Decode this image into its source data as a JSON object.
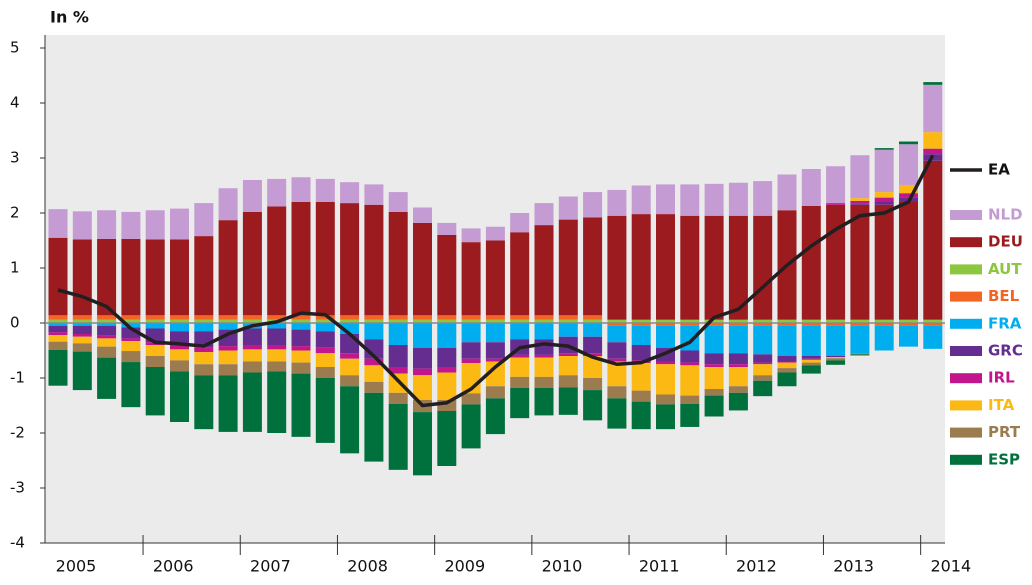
{
  "chart_data": {
    "type": "stacked_bar_line",
    "y_axis_label": "In %",
    "ylim": [
      -4,
      5
    ],
    "yticks": [
      -4,
      -3,
      -2,
      -1,
      0,
      1,
      2,
      3,
      4,
      5
    ],
    "x_labels": [
      "2005",
      "2006",
      "2007",
      "2008",
      "2009",
      "2010",
      "2011",
      "2012",
      "2013",
      "2014"
    ],
    "series": [
      {
        "name": "NLD",
        "color": "#c49bd2",
        "values": [
          0.52,
          0.51,
          0.52,
          0.49,
          0.53,
          0.56,
          0.6,
          0.58,
          0.58,
          0.5,
          0.45,
          0.42,
          0.38,
          0.37,
          0.36,
          0.28,
          0.22,
          0.25,
          0.25,
          0.35,
          0.4,
          0.42,
          0.46,
          0.47,
          0.52,
          0.54,
          0.57,
          0.58,
          0.6,
          0.63,
          0.65,
          0.67,
          0.67,
          0.78,
          0.77,
          0.74,
          0.86
        ]
      },
      {
        "name": "DEU",
        "color": "#9b1b1f",
        "values": [
          1.41,
          1.38,
          1.39,
          1.39,
          1.38,
          1.38,
          1.44,
          1.73,
          1.88,
          1.98,
          2.06,
          2.06,
          2.04,
          2.01,
          1.88,
          1.68,
          1.46,
          1.33,
          1.36,
          1.51,
          1.64,
          1.74,
          1.78,
          1.89,
          1.92,
          1.92,
          1.89,
          1.89,
          1.89,
          1.89,
          1.99,
          2.07,
          2.09,
          2.09,
          2.09,
          2.14,
          2.89
        ]
      },
      {
        "name": "AUT",
        "color": "#8dc63f",
        "values": [
          0.06,
          0.06,
          0.06,
          0.06,
          0.06,
          0.06,
          0.06,
          0.06,
          0.06,
          0.06,
          0.06,
          0.06,
          0.06,
          0.06,
          0.06,
          0.06,
          0.06,
          0.06,
          0.06,
          0.06,
          0.06,
          0.06,
          0.06,
          0.06,
          0.06,
          0.06,
          0.06,
          0.06,
          0.06,
          0.06,
          0.06,
          0.06,
          0.06,
          0.06,
          0.06,
          0.06,
          0.06
        ]
      },
      {
        "name": "BEL",
        "color": "#f26522",
        "values": [
          0.08,
          0.08,
          0.08,
          0.08,
          0.08,
          0.08,
          0.08,
          0.08,
          0.08,
          0.08,
          0.08,
          0.08,
          0.08,
          0.08,
          0.08,
          0.08,
          0.08,
          0.08,
          0.08,
          0.08,
          0.08,
          0.08,
          0.08,
          -0.05,
          -0.05,
          -0.05,
          -0.05,
          -0.05,
          -0.05,
          -0.05,
          -0.05,
          -0.05,
          -0.05,
          -0.05,
          -0.05,
          -0.05,
          -0.05
        ]
      },
      {
        "name": "FRA",
        "color": "#00aeef",
        "values": [
          -0.05,
          -0.05,
          -0.05,
          -0.08,
          -0.1,
          -0.15,
          -0.15,
          -0.12,
          -0.1,
          -0.1,
          -0.12,
          -0.15,
          -0.2,
          -0.3,
          -0.4,
          -0.45,
          -0.45,
          -0.35,
          -0.35,
          -0.3,
          -0.3,
          -0.25,
          -0.25,
          -0.3,
          -0.35,
          -0.4,
          -0.45,
          -0.5,
          -0.5,
          -0.52,
          -0.55,
          -0.55,
          -0.55,
          -0.5,
          -0.45,
          -0.38,
          -0.42
        ]
      },
      {
        "name": "GRC",
        "color": "#662d91",
        "values": [
          -0.12,
          -0.15,
          -0.18,
          -0.2,
          -0.25,
          -0.25,
          -0.3,
          -0.3,
          -0.3,
          -0.3,
          -0.3,
          -0.3,
          -0.35,
          -0.35,
          -0.4,
          -0.38,
          -0.35,
          -0.3,
          -0.3,
          -0.28,
          -0.28,
          -0.3,
          -0.3,
          -0.3,
          -0.28,
          -0.25,
          -0.22,
          -0.2,
          -0.2,
          -0.15,
          -0.1,
          -0.05,
          -0.02,
          0.02,
          0.05,
          0.08,
          0.12
        ]
      },
      {
        "name": "IRL",
        "color": "#c2168c",
        "values": [
          -0.05,
          -0.05,
          -0.05,
          -0.05,
          -0.05,
          -0.08,
          -0.08,
          -0.08,
          -0.08,
          -0.08,
          -0.08,
          -0.1,
          -0.1,
          -0.12,
          -0.12,
          -0.12,
          -0.1,
          -0.08,
          -0.05,
          -0.05,
          -0.05,
          -0.05,
          -0.05,
          -0.05,
          -0.05,
          -0.05,
          -0.05,
          -0.05,
          -0.05,
          -0.03,
          -0.02,
          -0.02,
          0.03,
          0.05,
          0.08,
          0.08,
          0.1
        ]
      },
      {
        "name": "ITA",
        "color": "#fdb913",
        "values": [
          -0.12,
          -0.12,
          -0.15,
          -0.18,
          -0.2,
          -0.2,
          -0.22,
          -0.25,
          -0.22,
          -0.22,
          -0.22,
          -0.25,
          -0.3,
          -0.3,
          -0.35,
          -0.45,
          -0.5,
          -0.55,
          -0.45,
          -0.35,
          -0.35,
          -0.35,
          -0.4,
          -0.45,
          -0.5,
          -0.55,
          -0.55,
          -0.4,
          -0.35,
          -0.2,
          -0.1,
          -0.05,
          -0.02,
          0.05,
          0.1,
          0.15,
          0.3
        ]
      },
      {
        "name": "PRT",
        "color": "#9c7b4f",
        "values": [
          -0.15,
          -0.15,
          -0.2,
          -0.2,
          -0.2,
          -0.2,
          -0.2,
          -0.2,
          -0.2,
          -0.18,
          -0.2,
          -0.2,
          -0.2,
          -0.2,
          -0.2,
          -0.22,
          -0.2,
          -0.2,
          -0.22,
          -0.2,
          -0.2,
          -0.22,
          -0.22,
          -0.22,
          -0.2,
          -0.18,
          -0.15,
          -0.12,
          -0.12,
          -0.1,
          -0.08,
          -0.05,
          -0.04,
          -0.02,
          0,
          0,
          0
        ]
      },
      {
        "name": "ESP",
        "color": "#00713d",
        "values": [
          -0.65,
          -0.7,
          -0.75,
          -0.82,
          -0.88,
          -0.92,
          -0.98,
          -1.03,
          -1.08,
          -1.12,
          -1.15,
          -1.18,
          -1.22,
          -1.25,
          -1.2,
          -1.15,
          -1.0,
          -0.8,
          -0.65,
          -0.55,
          -0.5,
          -0.5,
          -0.55,
          -0.55,
          -0.5,
          -0.45,
          -0.42,
          -0.38,
          -0.32,
          -0.28,
          -0.25,
          -0.15,
          -0.08,
          -0.02,
          0.03,
          0.05,
          0.05
        ]
      }
    ],
    "line": {
      "name": "EA",
      "color": "#231f20",
      "values": [
        0.6,
        0.48,
        0.3,
        -0.1,
        -0.35,
        -0.38,
        -0.42,
        -0.2,
        -0.05,
        0.02,
        0.18,
        0.15,
        -0.2,
        -0.6,
        -1.05,
        -1.5,
        -1.45,
        -1.2,
        -0.8,
        -0.45,
        -0.38,
        -0.42,
        -0.62,
        -0.75,
        -0.72,
        -0.55,
        -0.35,
        0.1,
        0.25,
        0.65,
        1.05,
        1.4,
        1.7,
        1.95,
        2.0,
        2.2,
        3.05
      ]
    }
  }
}
